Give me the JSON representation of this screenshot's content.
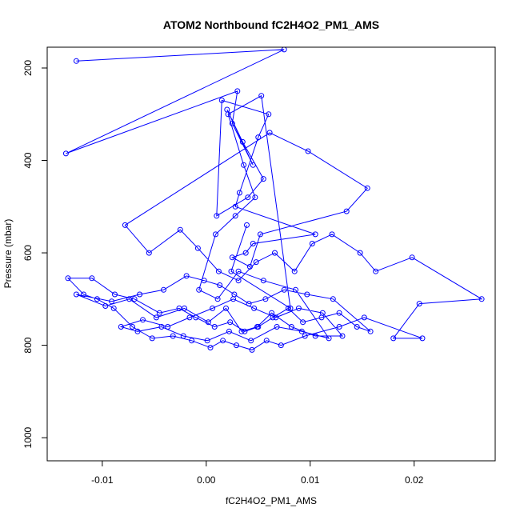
{
  "chart_data": {
    "type": "scatter",
    "title": "ATOM2 Northbound fC2H4O2_PM1_AMS",
    "xlabel": "fC2H4O2_PM1_AMS",
    "ylabel": "Pressure (mbar)",
    "xlim": [
      -0.0153,
      0.0278
    ],
    "ylim": [
      1050,
      155
    ],
    "y_inverted": true,
    "x_ticks": [
      -0.01,
      0.0,
      0.01,
      0.02
    ],
    "x_tick_labels": [
      "-0.01",
      "0.00",
      "0.01",
      "0.02"
    ],
    "y_ticks": [
      200,
      400,
      600,
      800,
      1000
    ],
    "y_tick_labels": [
      "200",
      "400",
      "600",
      "800",
      "1000"
    ],
    "grid": false,
    "legend": "none",
    "series": [
      {
        "color": "#0000ff",
        "marker": "open-circle",
        "line": true,
        "x": [
          -0.0125,
          0.0075,
          -0.0135,
          0.003,
          0.0025,
          0.0045,
          0.002,
          0.0035,
          0.0055,
          0.004,
          0.001,
          0.0015,
          0.006,
          0.005,
          0.0032,
          0.0028,
          0.0105,
          0.0045,
          0.0038,
          0.0025,
          0.0042,
          0.0052,
          0.0135,
          0.0155,
          0.0098,
          0.0061,
          -0.0078,
          -0.0055,
          -0.0025,
          -0.0008,
          0.0012,
          0.0031,
          0.0048,
          0.0066,
          0.0085,
          0.0102,
          0.0121,
          0.0148,
          0.0163,
          0.0198,
          0.0265,
          0.0205,
          0.018,
          0.0208,
          0.0152,
          0.0128,
          0.0095,
          0.0072,
          0.0058,
          0.0044,
          0.0029,
          0.0016,
          0.0004,
          -0.0014,
          -0.0032,
          -0.0052,
          -0.0071,
          -0.0089,
          -0.0105,
          -0.0118,
          -0.0133,
          -0.011,
          -0.0088,
          -0.0069,
          -0.0045,
          -0.0026,
          -0.001,
          0.0008,
          0.0023,
          0.0037,
          0.005,
          0.0064,
          0.0079,
          0.0093,
          0.0111,
          0.0128,
          0.0145,
          0.0158,
          0.0122,
          0.0097,
          0.0075,
          0.0057,
          0.0041,
          0.0027,
          0.0013,
          -0.0002,
          -0.0019,
          -0.0041,
          -0.0064,
          -0.0091,
          -0.0125,
          -0.0097,
          -0.0074,
          -0.0048,
          -0.0021,
          0.0002,
          0.0019,
          0.0034,
          0.0049,
          0.0063,
          0.0082,
          0.0105,
          0.0131,
          0.0112,
          0.0089,
          0.0067,
          0.0046,
          0.0026,
          0.0006,
          -0.0016,
          -0.0037,
          -0.0061,
          -0.0082,
          -0.0066,
          -0.0043,
          -0.0022,
          0.0001,
          0.0022,
          0.0043,
          0.0068,
          0.0092,
          0.0118,
          0.0086,
          0.0055,
          0.0031,
          0.0011,
          -0.0007,
          0.0009,
          0.0028,
          0.0047,
          0.0036,
          0.0021,
          0.0053,
          0.0081,
          0.0024,
          0.0039
        ],
        "y": [
          185,
          160,
          385,
          250,
          320,
          410,
          290,
          360,
          440,
          480,
          520,
          270,
          300,
          350,
          470,
          500,
          560,
          580,
          600,
          610,
          630,
          560,
          510,
          460,
          380,
          340,
          540,
          600,
          550,
          590,
          640,
          660,
          620,
          600,
          640,
          580,
          560,
          600,
          640,
          610,
          700,
          710,
          785,
          785,
          740,
          760,
          780,
          800,
          790,
          810,
          800,
          790,
          805,
          790,
          780,
          785,
          760,
          720,
          700,
          690,
          655,
          655,
          690,
          700,
          730,
          720,
          740,
          760,
          750,
          770,
          760,
          740,
          720,
          750,
          740,
          730,
          760,
          770,
          700,
          690,
          680,
          700,
          710,
          690,
          670,
          660,
          650,
          680,
          690,
          705,
          690,
          715,
          700,
          740,
          720,
          750,
          720,
          770,
          760,
          730,
          760,
          780,
          780,
          730,
          720,
          740,
          720,
          700,
          720,
          740,
          760,
          745,
          760,
          770,
          760,
          780,
          790,
          770,
          790,
          760,
          770,
          785,
          680,
          660,
          640,
          700,
          680,
          560,
          520,
          480,
          410,
          300,
          260,
          720,
          640,
          540
        ]
      }
    ]
  }
}
